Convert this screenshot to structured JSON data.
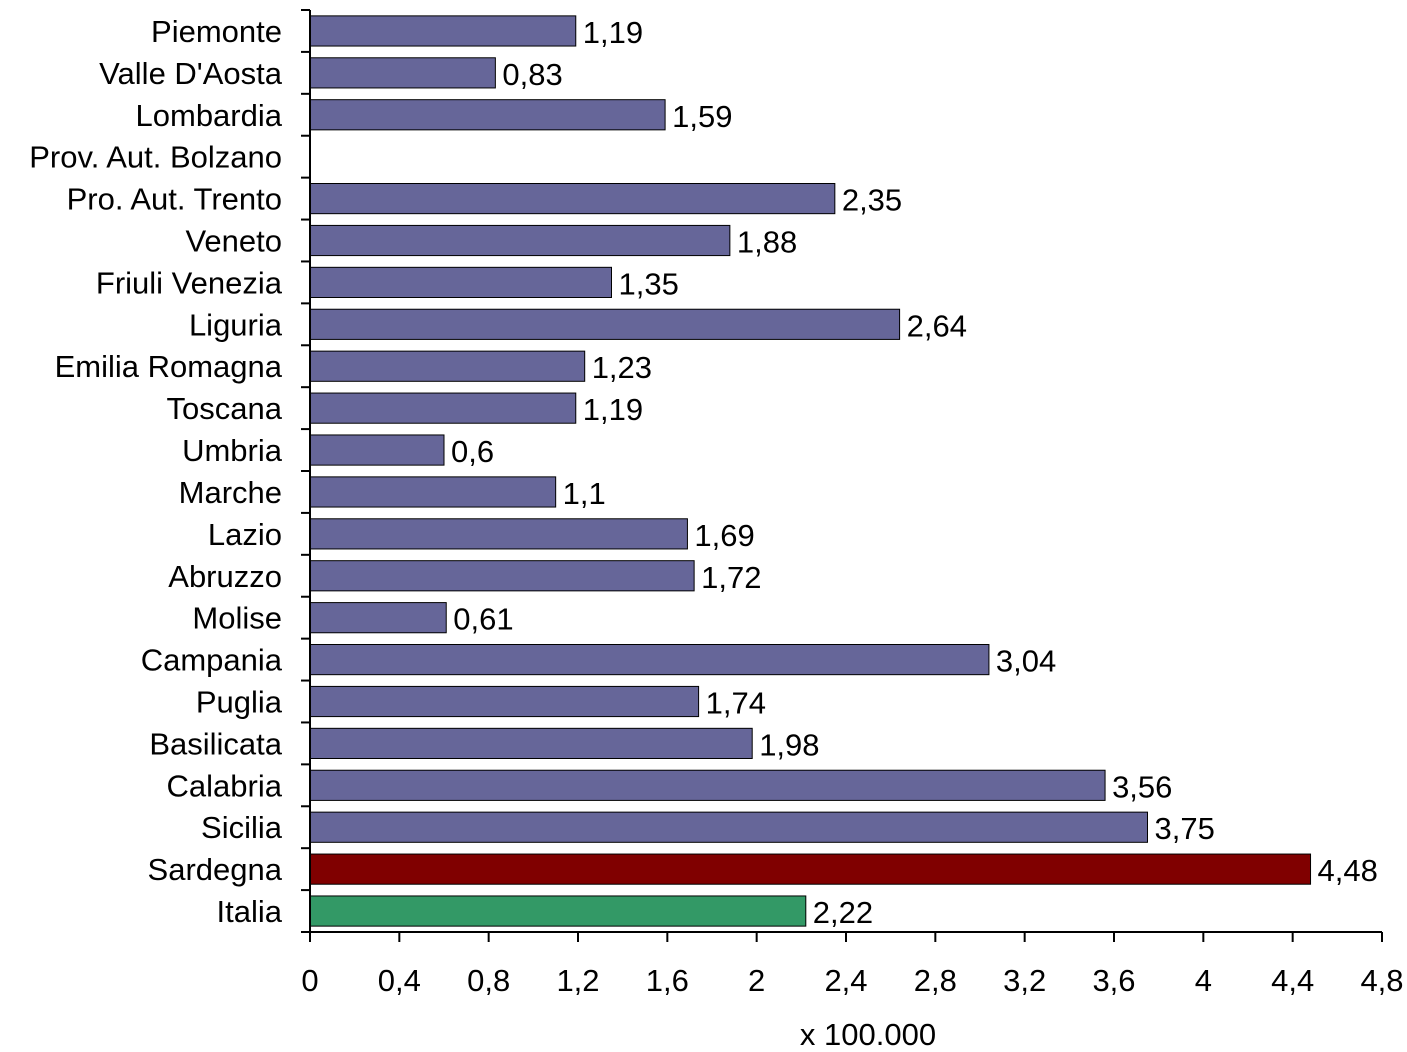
{
  "chart_data": {
    "type": "bar",
    "orientation": "horizontal",
    "categories": [
      "Piemonte",
      "Valle D'Aosta",
      "Lombardia",
      "Prov. Aut. Bolzano",
      "Pro. Aut. Trento",
      "Veneto",
      "Friuli Venezia",
      "Liguria",
      "Emilia Romagna",
      "Toscana",
      "Umbria",
      "Marche",
      "Lazio",
      "Abruzzo",
      "Molise",
      "Campania",
      "Puglia",
      "Basilicata",
      "Calabria",
      "Sicilia",
      "Sardegna",
      "Italia"
    ],
    "values": [
      1.19,
      0.83,
      1.59,
      null,
      2.35,
      1.88,
      1.35,
      2.64,
      1.23,
      1.19,
      0.6,
      1.1,
      1.69,
      1.72,
      0.61,
      3.04,
      1.74,
      1.98,
      3.56,
      3.75,
      4.48,
      2.22
    ],
    "value_labels": [
      "1,19",
      "0,83",
      "1,59",
      "",
      "2,35",
      "1,88",
      "1,35",
      "2,64",
      "1,23",
      "1,19",
      "0,6",
      "1,1",
      "1,69",
      "1,72",
      "0,61",
      "3,04",
      "1,74",
      "1,98",
      "3,56",
      "3,75",
      "4,48",
      "2,22"
    ],
    "colors": {
      "default": "#666699",
      "Sardegna": "#800000",
      "Italia": "#339966"
    },
    "xlabel": "x 100.000",
    "ylabel": "",
    "xlim": [
      0,
      4.8
    ],
    "xticks": [
      0,
      0.4,
      0.8,
      1.2,
      1.6,
      2,
      2.4,
      2.8,
      3.2,
      3.6,
      4,
      4.4,
      4.8
    ],
    "xtick_labels": [
      "0",
      "0,4",
      "0,8",
      "1,2",
      "1,6",
      "2",
      "2,4",
      "2,8",
      "3,2",
      "3,6",
      "4",
      "4,4",
      "4,8"
    ],
    "grid": false,
    "legend": "none"
  }
}
